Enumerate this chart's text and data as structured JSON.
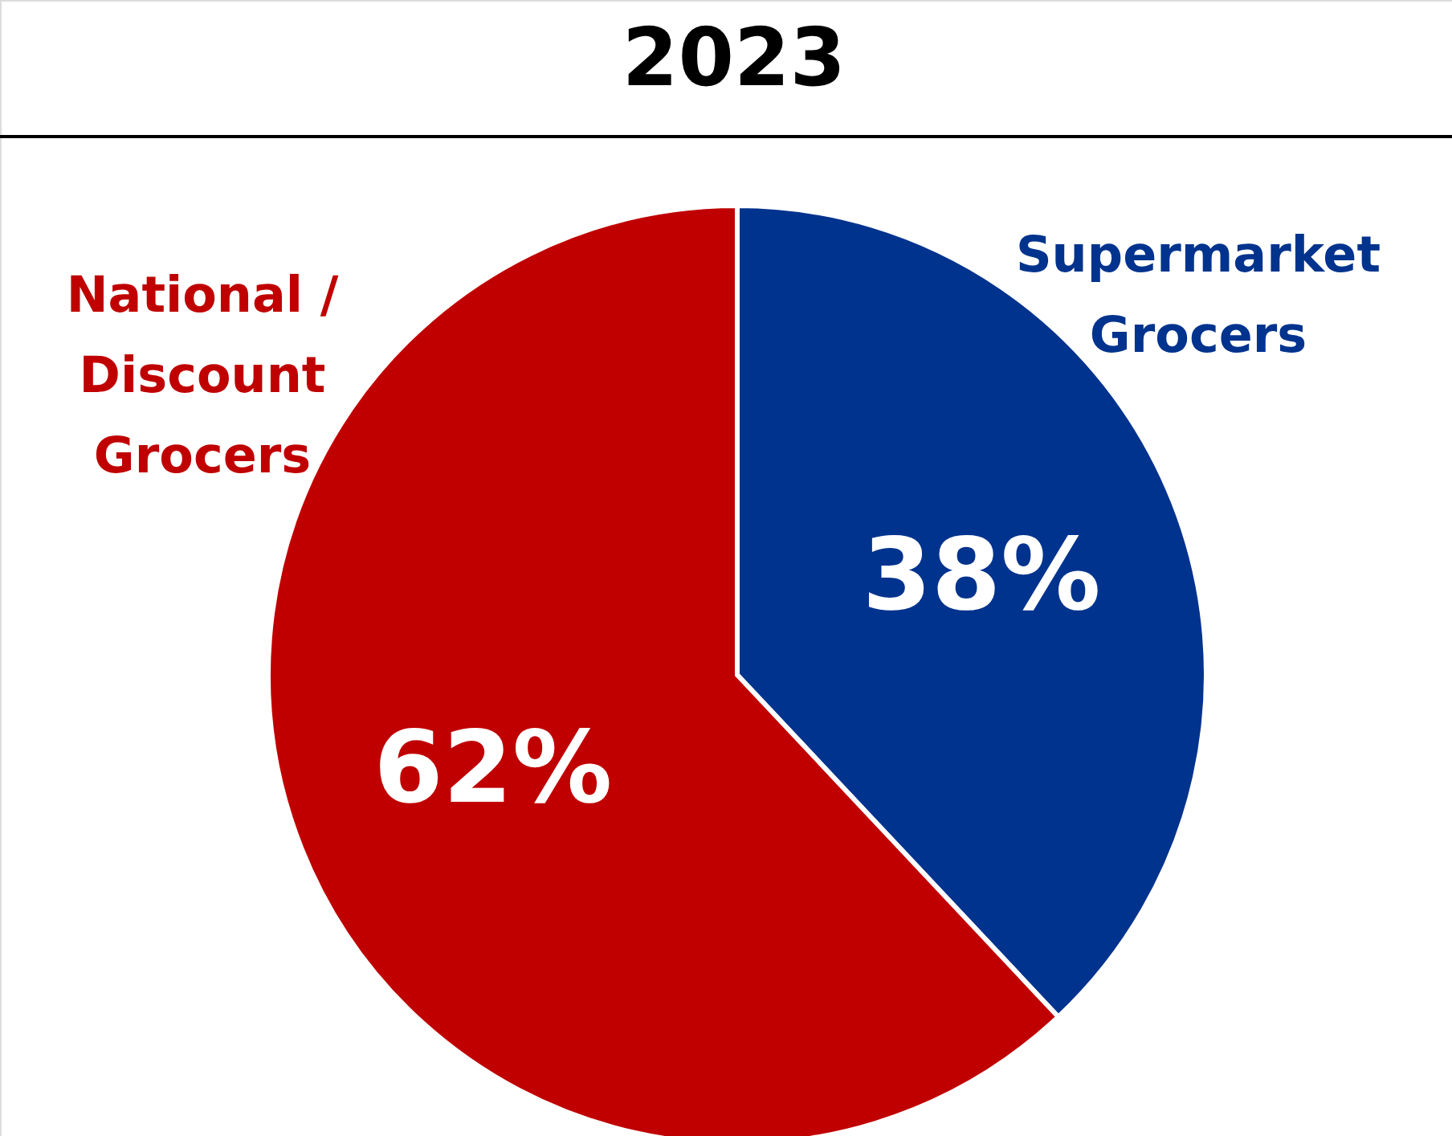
{
  "chart_data": {
    "type": "pie",
    "title": "2023",
    "categories": [
      "Supermarket\nGrocers",
      "National /\nDiscount\nGrocers"
    ],
    "values": [
      38,
      62
    ],
    "colors": [
      "#00338d",
      "#c00000"
    ],
    "value_labels": [
      "38%",
      "62%"
    ]
  }
}
